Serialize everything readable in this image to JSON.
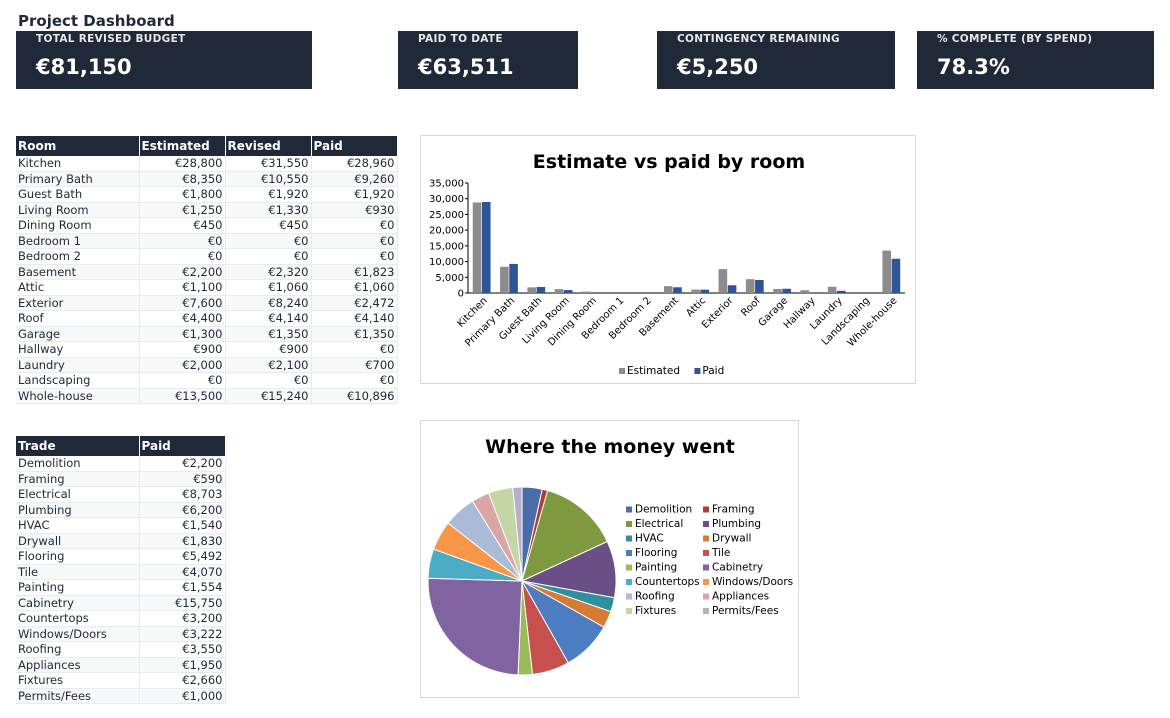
{
  "title": "Project Dashboard",
  "kpis": [
    {
      "label": "TOTAL REVISED BUDGET",
      "value": "€81,150"
    },
    {
      "label": "PAID TO DATE",
      "value": "€63,511"
    },
    {
      "label": "CONTINGENCY REMAINING",
      "value": "€5,250"
    },
    {
      "label": "% COMPLETE (BY SPEND)",
      "value": "78.3%"
    }
  ],
  "rooms_table": {
    "headers": [
      "Room",
      "Estimated",
      "Revised",
      "Paid"
    ],
    "rows": [
      [
        "Kitchen",
        "€28,800",
        "€31,550",
        "€28,960"
      ],
      [
        "Primary Bath",
        "€8,350",
        "€10,550",
        "€9,260"
      ],
      [
        "Guest Bath",
        "€1,800",
        "€1,920",
        "€1,920"
      ],
      [
        "Living Room",
        "€1,250",
        "€1,330",
        "€930"
      ],
      [
        "Dining Room",
        "€450",
        "€450",
        "€0"
      ],
      [
        "Bedroom 1",
        "€0",
        "€0",
        "€0"
      ],
      [
        "Bedroom 2",
        "€0",
        "€0",
        "€0"
      ],
      [
        "Basement",
        "€2,200",
        "€2,320",
        "€1,823"
      ],
      [
        "Attic",
        "€1,100",
        "€1,060",
        "€1,060"
      ],
      [
        "Exterior",
        "€7,600",
        "€8,240",
        "€2,472"
      ],
      [
        "Roof",
        "€4,400",
        "€4,140",
        "€4,140"
      ],
      [
        "Garage",
        "€1,300",
        "€1,350",
        "€1,350"
      ],
      [
        "Hallway",
        "€900",
        "€900",
        "€0"
      ],
      [
        "Laundry",
        "€2,000",
        "€2,100",
        "€700"
      ],
      [
        "Landscaping",
        "€0",
        "€0",
        "€0"
      ],
      [
        "Whole-house",
        "€13,500",
        "€15,240",
        "€10,896"
      ]
    ]
  },
  "trades_table": {
    "headers": [
      "Trade",
      "Paid"
    ],
    "rows": [
      [
        "Demolition",
        "€2,200"
      ],
      [
        "Framing",
        "€590"
      ],
      [
        "Electrical",
        "€8,703"
      ],
      [
        "Plumbing",
        "€6,200"
      ],
      [
        "HVAC",
        "€1,540"
      ],
      [
        "Drywall",
        "€1,830"
      ],
      [
        "Flooring",
        "€5,492"
      ],
      [
        "Tile",
        "€4,070"
      ],
      [
        "Painting",
        "€1,554"
      ],
      [
        "Cabinetry",
        "€15,750"
      ],
      [
        "Countertops",
        "€3,200"
      ],
      [
        "Windows/Doors",
        "€3,222"
      ],
      [
        "Roofing",
        "€3,550"
      ],
      [
        "Appliances",
        "€1,950"
      ],
      [
        "Fixtures",
        "€2,660"
      ],
      [
        "Permits/Fees",
        "€1,000"
      ]
    ]
  },
  "chart_data": [
    {
      "type": "bar",
      "title": "Estimate vs paid by room",
      "categories": [
        "Kitchen",
        "Primary Bath",
        "Guest Bath",
        "Living Room",
        "Dining Room",
        "Bedroom 1",
        "Bedroom 2",
        "Basement",
        "Attic",
        "Exterior",
        "Roof",
        "Garage",
        "Hallway",
        "Laundry",
        "Landscaping",
        "Whole-house"
      ],
      "series": [
        {
          "name": "Estimated",
          "color": "#8c8c8c",
          "values": [
            28800,
            8350,
            1800,
            1250,
            450,
            0,
            0,
            2200,
            1100,
            7600,
            4400,
            1300,
            900,
            2000,
            0,
            13500
          ]
        },
        {
          "name": "Paid",
          "color": "#2f5597",
          "values": [
            28960,
            9260,
            1920,
            930,
            0,
            0,
            0,
            1823,
            1060,
            2472,
            4140,
            1350,
            0,
            700,
            0,
            10896
          ]
        }
      ],
      "yticks": [
        "0",
        "5,000",
        "10,000",
        "15,000",
        "20,000",
        "25,000",
        "30,000",
        "35,000"
      ],
      "ylim": [
        0,
        35000
      ],
      "legend": "bottom",
      "grid": false
    },
    {
      "type": "pie",
      "title": "Where the money went",
      "labels": [
        "Demolition",
        "Framing",
        "Electrical",
        "Plumbing",
        "HVAC",
        "Drywall",
        "Flooring",
        "Tile",
        "Painting",
        "Cabinetry",
        "Countertops",
        "Windows/Doors",
        "Roofing",
        "Appliances",
        "Fixtures",
        "Permits/Fees"
      ],
      "values": [
        2200,
        590,
        8703,
        6200,
        1540,
        1830,
        5492,
        4070,
        1554,
        15750,
        3200,
        3222,
        3550,
        1950,
        2660,
        1000
      ],
      "colors": [
        "#4a6ea9",
        "#b13b35",
        "#7f9a3e",
        "#6a4e86",
        "#2f8f9d",
        "#d77b32",
        "#4b7dc0",
        "#c5504d",
        "#9bbb59",
        "#8064a2",
        "#4bacc6",
        "#f79646",
        "#aabad7",
        "#d9a6a5",
        "#c4d6a3",
        "#b9adcb"
      ],
      "legend": "right"
    }
  ]
}
